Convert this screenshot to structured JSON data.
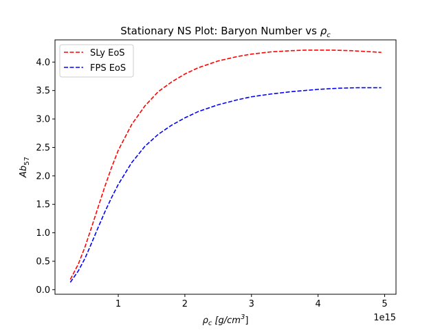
{
  "chart_data": {
    "type": "line",
    "title_main": "Stationary NS Plot: Baryon Number vs ",
    "title_sym": "ρ",
    "title_sub": "c",
    "xlabel_sym": "ρ",
    "xlabel_sub": "c",
    "xlabel_unit_pre": " [g/cm",
    "xlabel_unit_sup": "3",
    "xlabel_unit_post": "]",
    "ylabel_main": "Ab",
    "ylabel_sub": "57",
    "x_offset_label": "1e15",
    "xlim": [
      0.05,
      5.17
    ],
    "ylim": [
      -0.08,
      4.39
    ],
    "x_ticks": [
      1,
      2,
      3,
      4,
      5
    ],
    "x_tick_labels": [
      "1",
      "2",
      "3",
      "4",
      "5"
    ],
    "y_ticks": [
      0.0,
      0.5,
      1.0,
      1.5,
      2.0,
      2.5,
      3.0,
      3.5,
      4.0
    ],
    "y_tick_labels": [
      "0.0",
      "0.5",
      "1.0",
      "1.5",
      "2.0",
      "2.5",
      "3.0",
      "3.5",
      "4.0"
    ],
    "grid": false,
    "legend_position": "upper left",
    "series": [
      {
        "name": "SLy EoS",
        "color": "#ff0000",
        "style": "dashed",
        "x": [
          0.28,
          0.4,
          0.5,
          0.6,
          0.7,
          0.8,
          0.9,
          1.0,
          1.2,
          1.4,
          1.6,
          1.8,
          2.0,
          2.2,
          2.5,
          2.8,
          3.0,
          3.3,
          3.6,
          3.8,
          4.0,
          4.2,
          4.5,
          4.8,
          4.95
        ],
        "values": [
          0.18,
          0.45,
          0.75,
          1.1,
          1.46,
          1.82,
          2.15,
          2.45,
          2.9,
          3.23,
          3.48,
          3.65,
          3.79,
          3.9,
          4.02,
          4.1,
          4.14,
          4.18,
          4.2,
          4.21,
          4.21,
          4.21,
          4.2,
          4.18,
          4.17
        ]
      },
      {
        "name": "FPS EoS",
        "color": "#0000ff",
        "style": "dashed",
        "x": [
          0.28,
          0.4,
          0.5,
          0.6,
          0.7,
          0.8,
          0.9,
          1.0,
          1.2,
          1.4,
          1.6,
          1.8,
          2.0,
          2.2,
          2.5,
          2.8,
          3.0,
          3.3,
          3.6,
          4.0,
          4.3,
          4.6,
          4.95
        ],
        "values": [
          0.13,
          0.33,
          0.55,
          0.82,
          1.1,
          1.37,
          1.62,
          1.85,
          2.23,
          2.52,
          2.73,
          2.89,
          3.02,
          3.13,
          3.25,
          3.34,
          3.39,
          3.44,
          3.48,
          3.52,
          3.54,
          3.55,
          3.55
        ]
      }
    ]
  }
}
